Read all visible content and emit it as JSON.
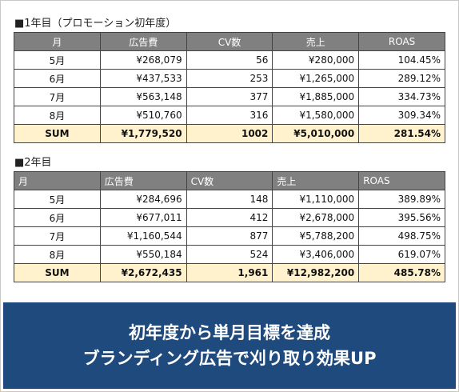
{
  "sections": [
    {
      "title": "■1年目（プロモーション初年度）",
      "table": {
        "header": [
          "月",
          "広告費",
          "CV数",
          "売上",
          "ROAS"
        ],
        "rows": [
          [
            "5月",
            "¥268,079",
            "56",
            "¥280,000",
            "104.45%"
          ],
          [
            "6月",
            "¥437,533",
            "253",
            "¥1,265,000",
            "289.12%"
          ],
          [
            "7月",
            "¥563,148",
            "377",
            "¥1,885,000",
            "334.73%"
          ],
          [
            "8月",
            "¥510,760",
            "316",
            "¥1,580,000",
            "309.34%"
          ]
        ],
        "total": [
          "SUM",
          "¥1,779,520",
          "1002",
          "¥5,010,000",
          "281.54%"
        ]
      }
    },
    {
      "title": "■2年目",
      "table": {
        "header": [
          "月",
          "広告費",
          "CV数",
          "売上",
          "ROAS"
        ],
        "rows": [
          [
            "5月",
            "¥284,696",
            "148",
            "¥1,110,000",
            "389.89%"
          ],
          [
            "6月",
            "¥677,011",
            "412",
            "¥2,678,000",
            "395.56%"
          ],
          [
            "7月",
            "¥1,160,544",
            "877",
            "¥5,788,200",
            "498.75%"
          ],
          [
            "8月",
            "¥550,184",
            "524",
            "¥3,406,000",
            "619.07%"
          ]
        ],
        "total": [
          "SUM",
          "¥2,672,435",
          "1,961",
          "¥12,982,200",
          "485.78%"
        ]
      }
    }
  ],
  "banner": {
    "lines": [
      "初年度から単月目標を達成",
      "ブランディング広告で刈り取り効果UP"
    ]
  }
}
